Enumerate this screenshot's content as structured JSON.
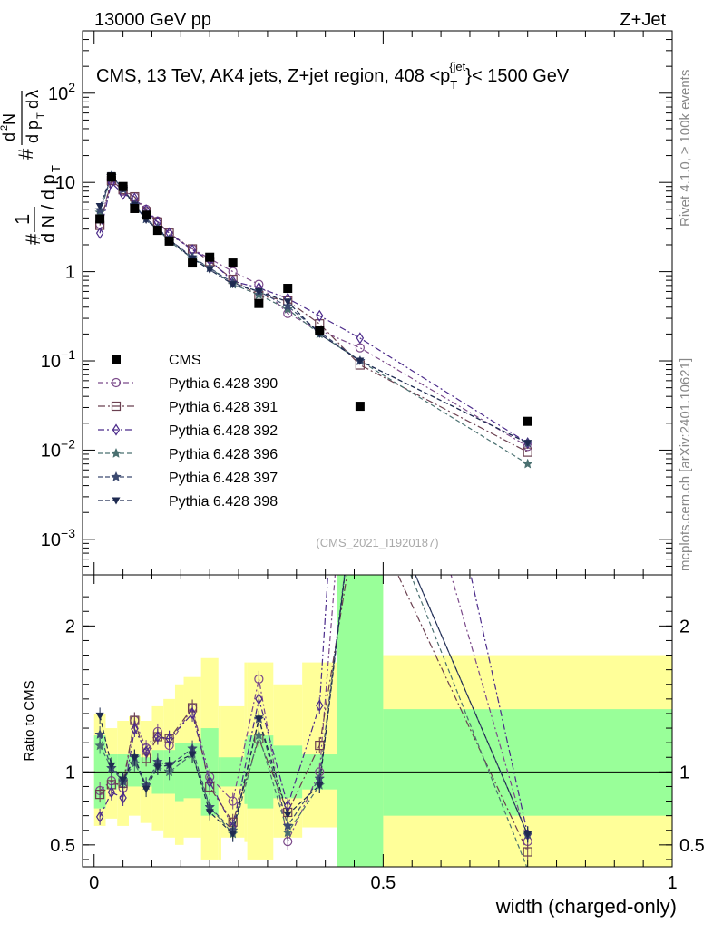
{
  "header": {
    "energy_label": "13000 GeV pp",
    "process_label": "Z+Jet",
    "rivet_label": "Rivet 4.1.0, ≥ 100k events",
    "mcplots_label": "mcplots.cern.ch [arXiv:2401.10621]",
    "analysis_id": "(CMS_2021_I1920187)"
  },
  "chart_data": {
    "type": "line",
    "title": "CMS, 13 TeV, AK4 jets, Z+jet region, 408 <p_T^{jet}< 1500 GeV",
    "title_parts": {
      "left": "CMS, 13 TeV, AK4 jets, Z+jet region, 408 <p",
      "sub": "T",
      "sup": "{jet",
      "right": "}< 1500 GeV"
    },
    "xlabel": "width (charged-only)",
    "ylabel_main": "1/dN/dp_T d²N/dp_T dλ",
    "ylabel_ratio": "Ratio to CMS",
    "xlim": [
      -0.02,
      1.0
    ],
    "main_yscale": "log",
    "main_ylim": [
      0.0004,
      500
    ],
    "ratio_ylim": [
      0.35,
      2.35
    ],
    "x_ticks": [
      0,
      0.5,
      1
    ],
    "x_tick_labels": [
      "0",
      "0.5",
      "1"
    ],
    "main_y_ticks": [
      0.001,
      0.01,
      0.1,
      1,
      10,
      100
    ],
    "main_y_tick_labels": [
      {
        "base": "10",
        "exp": "−3"
      },
      {
        "base": "10",
        "exp": "−2"
      },
      {
        "base": "10",
        "exp": "−1"
      },
      {
        "base": "1",
        "exp": ""
      },
      {
        "base": "10",
        "exp": ""
      },
      {
        "base": "10",
        "exp": "2"
      }
    ],
    "ratio_y_ticks": [
      0.5,
      1,
      2
    ],
    "ratio_y_tick_labels": [
      "0.5",
      "1",
      "2"
    ],
    "x": [
      0.01,
      0.03,
      0.05,
      0.07,
      0.09,
      0.11,
      0.13,
      0.17,
      0.2,
      0.24,
      0.285,
      0.335,
      0.39,
      0.46,
      0.75
    ],
    "data": {
      "name": "CMS",
      "values": [
        3.9,
        11.5,
        9.0,
        5.1,
        4.3,
        2.9,
        2.2,
        1.25,
        1.45,
        1.25,
        0.44,
        0.65,
        0.22,
        0.031,
        0.021
      ]
    },
    "series": [
      {
        "name": "Pythia 6.428 390",
        "color": "#7b4a8a",
        "dash": "6,3,2,3",
        "marker": "circle",
        "values": [
          3.4,
          10.8,
          8.0,
          6.9,
          5.0,
          3.7,
          2.6,
          1.8,
          1.4,
          1.0,
          0.72,
          0.34,
          0.22,
          0.14,
          0.011
        ]
      },
      {
        "name": "Pythia 6.428 391",
        "color": "#6b4050",
        "dash": "8,3,2,3",
        "marker": "square",
        "values": [
          3.3,
          10.5,
          8.3,
          6.9,
          4.7,
          3.6,
          2.7,
          1.8,
          1.3,
          0.82,
          0.54,
          0.47,
          0.26,
          0.09,
          0.0095
        ]
      },
      {
        "name": "Pythia 6.428 392",
        "color": "#4b2a8a",
        "dash": "7,3,2,3",
        "marker": "diamond",
        "values": [
          2.7,
          9.9,
          7.4,
          6.6,
          4.9,
          3.6,
          2.7,
          1.75,
          1.35,
          0.78,
          0.66,
          0.5,
          0.32,
          0.18,
          0.012
        ]
      },
      {
        "name": "Pythia 6.428 396",
        "color": "#4a7070",
        "dash": "5,3",
        "marker": "star",
        "values": [
          4.6,
          11.8,
          8.5,
          5.4,
          3.9,
          3.0,
          2.2,
          1.4,
          1.1,
          0.72,
          0.55,
          0.38,
          0.2,
          0.1,
          0.007
        ]
      },
      {
        "name": "Pythia 6.428 397",
        "color": "#3c4a70",
        "dash": "5,3",
        "marker": "star",
        "values": [
          4.9,
          11.8,
          8.4,
          5.6,
          3.9,
          3.1,
          2.3,
          1.45,
          1.1,
          0.75,
          0.6,
          0.41,
          0.21,
          0.1,
          0.012
        ]
      },
      {
        "name": "Pythia 6.428 398",
        "color": "#1e2a50",
        "dash": "5,3",
        "marker": "triangle-down",
        "values": [
          5.4,
          12.0,
          8.5,
          5.6,
          3.8,
          3.0,
          2.3,
          1.4,
          1.05,
          0.72,
          0.6,
          0.46,
          0.2,
          0.1,
          0.012
        ]
      }
    ],
    "uncertainty_bands": {
      "x_edges": [
        0,
        0.02,
        0.04,
        0.06,
        0.08,
        0.1,
        0.12,
        0.14,
        0.155,
        0.185,
        0.215,
        0.22,
        0.26,
        0.265,
        0.31,
        0.36,
        0.42,
        0.5,
        1.0
      ],
      "inner_low": [
        0.75,
        0.88,
        0.9,
        0.9,
        0.9,
        0.85,
        0.85,
        0.8,
        0.82,
        0.7,
        0.9,
        0.9,
        0.78,
        0.75,
        0.82,
        0.88,
        0.35,
        0.7
      ],
      "inner_high": [
        1.25,
        1.12,
        1.12,
        1.12,
        1.1,
        1.15,
        1.15,
        1.2,
        1.2,
        1.3,
        1.1,
        1.1,
        1.22,
        1.25,
        1.18,
        1.12,
        2.35,
        1.43
      ],
      "outer_low": [
        0.63,
        0.68,
        0.63,
        0.7,
        0.65,
        0.6,
        0.55,
        0.5,
        0.55,
        0.4,
        0.4,
        0.55,
        0.52,
        0.4,
        0.55,
        0.62,
        0.35,
        0.35
      ],
      "outer_high": [
        1.4,
        1.3,
        1.35,
        1.38,
        1.35,
        1.45,
        1.5,
        1.6,
        1.65,
        1.78,
        1.45,
        1.45,
        1.75,
        1.75,
        1.6,
        1.75,
        2.35,
        1.8
      ]
    },
    "legend": "left-center",
    "band_colors": {
      "inner": "#99ff99",
      "outer": "#ffff99"
    }
  }
}
